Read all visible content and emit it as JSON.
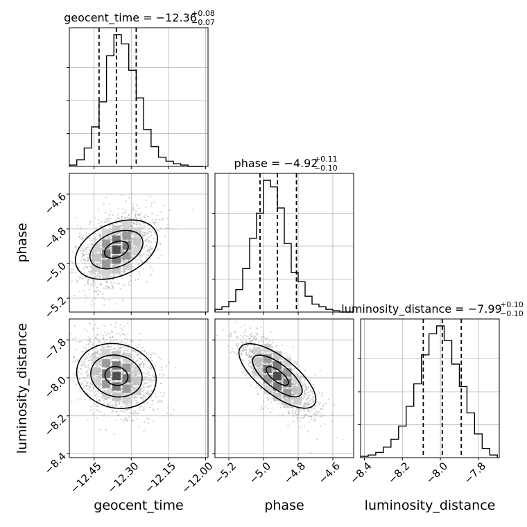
{
  "chart_data": {
    "type": "corner",
    "parameters": [
      "geocent_time",
      "phase",
      "luminosity_distance"
    ],
    "titles": [
      {
        "param": "geocent_time",
        "text": "geocent_time = −12.36",
        "plus": "+0.08",
        "minus": "−0.07"
      },
      {
        "param": "phase",
        "text": "phase = −4.92",
        "plus": "+0.11",
        "minus": "−0.10"
      },
      {
        "param": "luminosity_distance",
        "text": "luminosity_distance = −7.99",
        "plus": "+0.10",
        "minus": "−0.10"
      }
    ],
    "ranges": {
      "geocent_time": [
        -12.55,
        -11.99
      ],
      "phase": [
        -5.28,
        -4.48
      ],
      "luminosity_distance": [
        -8.42,
        -7.69
      ]
    },
    "ticks": {
      "geocent_time": [
        "−12.45",
        "−12.30",
        "−12.15",
        "−12.00"
      ],
      "phase": [
        "−5.2",
        "−5.0",
        "−4.8",
        "−4.6"
      ],
      "luminosity_distance": [
        "−8.4",
        "−8.2",
        "−8.0",
        "−7.8"
      ]
    },
    "tick_values": {
      "geocent_time": [
        -12.45,
        -12.3,
        -12.15,
        -12.0
      ],
      "phase": [
        -5.2,
        -5.0,
        -4.8,
        -4.6
      ],
      "luminosity_distance": [
        -8.4,
        -8.2,
        -8.0,
        -7.8
      ]
    },
    "quantiles": {
      "geocent_time": [
        -12.43,
        -12.36,
        -12.28
      ],
      "phase": [
        -5.02,
        -4.92,
        -4.81
      ],
      "luminosity_distance": [
        -8.09,
        -7.99,
        -7.89
      ]
    },
    "histograms": {
      "geocent_time": {
        "edges": [
          -12.55,
          -12.52,
          -12.49,
          -12.46,
          -12.43,
          -12.4,
          -12.37,
          -12.34,
          -12.31,
          -12.28,
          -12.25,
          -12.22,
          -12.19,
          -12.16,
          -12.13,
          -12.1,
          -12.07,
          -12.04,
          -12.01
        ],
        "counts": [
          1,
          5,
          14,
          30,
          49,
          84,
          100,
          93,
          73,
          52,
          28,
          15,
          7,
          4,
          2,
          1,
          0,
          0
        ]
      },
      "phase": {
        "edges": [
          -5.28,
          -5.24,
          -5.2,
          -5.16,
          -5.12,
          -5.08,
          -5.04,
          -5.0,
          -4.96,
          -4.92,
          -4.88,
          -4.84,
          -4.8,
          -4.76,
          -4.72,
          -4.68,
          -4.64,
          -4.6,
          -4.56,
          -4.52,
          -4.48
        ],
        "counts": [
          2,
          4,
          8,
          17,
          33,
          56,
          75,
          100,
          95,
          79,
          52,
          30,
          23,
          12,
          6,
          4,
          2,
          1,
          0,
          0
        ]
      },
      "luminosity_distance": {
        "edges": [
          -8.42,
          -8.38,
          -8.34,
          -8.3,
          -8.26,
          -8.22,
          -8.18,
          -8.14,
          -8.1,
          -8.06,
          -8.02,
          -7.98,
          -7.94,
          -7.9,
          -7.86,
          -7.82,
          -7.78,
          -7.74,
          -7.7
        ],
        "counts": [
          1,
          2,
          4,
          8,
          14,
          24,
          39,
          56,
          78,
          94,
          100,
          89,
          71,
          54,
          34,
          18,
          7,
          2
        ]
      }
    },
    "scatter_seed": 7,
    "correlations": {
      "phase|geocent_time": 0.45,
      "luminosity_distance|geocent_time": -0.25,
      "luminosity_distance|phase": -0.75
    },
    "axis_labels": {
      "x": [
        "geocent_time",
        "phase",
        "luminosity_distance"
      ],
      "y": [
        "phase",
        "luminosity_distance"
      ]
    },
    "grid": true
  }
}
